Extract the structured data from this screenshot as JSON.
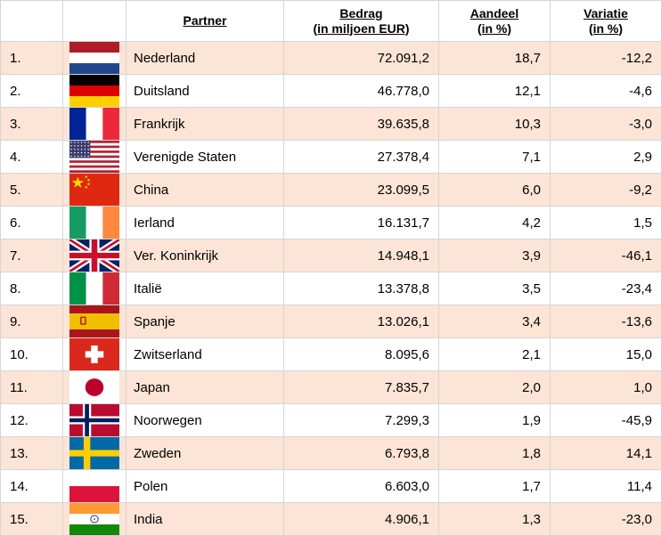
{
  "headers": {
    "partner": "Partner",
    "bedrag_line1": "Bedrag",
    "bedrag_line2": "(in miljoen EUR)",
    "aandeel_line1": "Aandeel",
    "aandeel_line2": "(in %)",
    "variatie_line1": "Variatie",
    "variatie_line2": "(in %)"
  },
  "rows": [
    {
      "rank": "1.",
      "flag": "flag-netherlands-icon",
      "partner": "Nederland",
      "bedrag": "72.091,2",
      "aandeel": "18,7",
      "variatie": "-12,2"
    },
    {
      "rank": "2.",
      "flag": "flag-germany-icon",
      "partner": "Duitsland",
      "bedrag": "46.778,0",
      "aandeel": "12,1",
      "variatie": "-4,6"
    },
    {
      "rank": "3.",
      "flag": "flag-france-icon",
      "partner": "Frankrijk",
      "bedrag": "39.635,8",
      "aandeel": "10,3",
      "variatie": "-3,0"
    },
    {
      "rank": "4.",
      "flag": "flag-usa-icon",
      "partner": "Verenigde Staten",
      "bedrag": "27.378,4",
      "aandeel": "7,1",
      "variatie": "2,9"
    },
    {
      "rank": "5.",
      "flag": "flag-china-icon",
      "partner": "China",
      "bedrag": "23.099,5",
      "aandeel": "6,0",
      "variatie": "-9,2"
    },
    {
      "rank": "6.",
      "flag": "flag-ireland-icon",
      "partner": "Ierland",
      "bedrag": "16.131,7",
      "aandeel": "4,2",
      "variatie": "1,5"
    },
    {
      "rank": "7.",
      "flag": "flag-uk-icon",
      "partner": "Ver. Koninkrijk",
      "bedrag": "14.948,1",
      "aandeel": "3,9",
      "variatie": "-46,1"
    },
    {
      "rank": "8.",
      "flag": "flag-italy-icon",
      "partner": "Italië",
      "bedrag": "13.378,8",
      "aandeel": "3,5",
      "variatie": "-23,4"
    },
    {
      "rank": "9.",
      "flag": "flag-spain-icon",
      "partner": "Spanje",
      "bedrag": "13.026,1",
      "aandeel": "3,4",
      "variatie": "-13,6"
    },
    {
      "rank": "10.",
      "flag": "flag-switzerland-icon",
      "partner": "Zwitserland",
      "bedrag": "8.095,6",
      "aandeel": "2,1",
      "variatie": "15,0"
    },
    {
      "rank": "11.",
      "flag": "flag-japan-icon",
      "partner": "Japan",
      "bedrag": "7.835,7",
      "aandeel": "2,0",
      "variatie": "1,0"
    },
    {
      "rank": "12.",
      "flag": "flag-norway-icon",
      "partner": "Noorwegen",
      "bedrag": "7.299,3",
      "aandeel": "1,9",
      "variatie": "-45,9"
    },
    {
      "rank": "13.",
      "flag": "flag-sweden-icon",
      "partner": "Zweden",
      "bedrag": "6.793,8",
      "aandeel": "1,8",
      "variatie": "14,1"
    },
    {
      "rank": "14.",
      "flag": "flag-poland-icon",
      "partner": "Polen",
      "bedrag": "6.603,0",
      "aandeel": "1,7",
      "variatie": "11,4"
    },
    {
      "rank": "15.",
      "flag": "flag-india-icon",
      "partner": "India",
      "bedrag": "4.906,1",
      "aandeel": "1,3",
      "variatie": "-23,0"
    }
  ],
  "colors": {
    "row_band": "#fce4d6",
    "row_plain": "#ffffff",
    "grid": "#d5d5d5"
  }
}
